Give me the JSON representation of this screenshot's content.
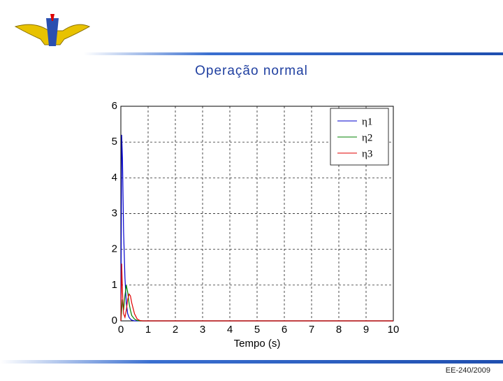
{
  "slide": {
    "title": "Operação normal",
    "footer": "EE-240/2009"
  },
  "chart_data": {
    "type": "line",
    "xlabel": "Tempo (s)",
    "x": [
      0,
      0.03,
      0.06,
      0.1,
      0.15,
      0.2,
      0.25,
      0.3,
      0.35,
      0.4,
      0.5,
      0.6,
      0.7,
      0.8,
      1,
      2,
      10
    ],
    "series": [
      {
        "name": "η1",
        "color": "#0000cc",
        "values": [
          0,
          5.2,
          4.5,
          2.5,
          1.2,
          0.5,
          0.2,
          0.1,
          0.05,
          0.02,
          0,
          0,
          0,
          0,
          0,
          0,
          0
        ]
      },
      {
        "name": "η2",
        "color": "#008000",
        "values": [
          0,
          0.3,
          0.6,
          0.3,
          0.7,
          1.0,
          0.8,
          0.5,
          0.3,
          0.15,
          0.05,
          0.01,
          0,
          0,
          0,
          0,
          0
        ]
      },
      {
        "name": "η3",
        "color": "#e00000",
        "values": [
          0,
          1.6,
          0.8,
          0.2,
          0.1,
          0.3,
          0.6,
          0.75,
          0.7,
          0.5,
          0.2,
          0.05,
          0.01,
          0,
          0,
          0,
          0
        ]
      }
    ],
    "xlim": [
      0,
      10
    ],
    "xticks": [
      0,
      1,
      2,
      3,
      4,
      5,
      6,
      7,
      8,
      9,
      10
    ],
    "ylim": [
      0,
      6
    ],
    "yticks": [
      0,
      1,
      2,
      3,
      4,
      5,
      6
    ],
    "grid": true,
    "legend": "upper right"
  }
}
